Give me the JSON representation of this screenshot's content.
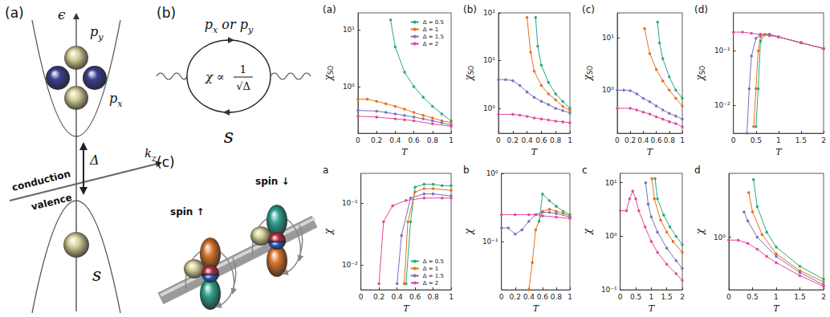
{
  "diagram": {
    "a": {
      "label": "(a)",
      "energy_axis": "ϵ",
      "orbital_upper": {
        "text": "p",
        "sub": "y"
      },
      "orbital_middle": {
        "text": "p",
        "sub": "x"
      },
      "gap": "Δ",
      "band_upper": "conduction",
      "band_lower": "valence",
      "momentum_axis": {
        "text": "k",
        "sub": "z"
      },
      "orbital_lower": "s"
    },
    "b": {
      "label": "(b)",
      "top_left": {
        "text": "p",
        "sub": "x"
      },
      "top_middle": "or",
      "top_right": {
        "text": "p",
        "sub": "y"
      },
      "formula": {
        "lhs": "χ ∝",
        "numerator": "1",
        "denominator": "√Δ"
      },
      "bottom": "s"
    },
    "c": {
      "label": "(c)",
      "spin_left": "spin ↑",
      "spin_right": "spin ↓"
    }
  },
  "chart_data": [
    {
      "type": "line",
      "title": "(a)",
      "xlabel": "T",
      "ylabel": "χ",
      "ylabel_sub": "SO",
      "log": "y",
      "grid": false,
      "marker": "circle",
      "legend": "upper right",
      "xlim": [
        0,
        1
      ],
      "xticks": [
        0,
        0.2,
        0.4,
        0.6,
        0.8,
        1
      ],
      "ylim": [
        0.15,
        20
      ],
      "yticks": [
        {
          "value": 1,
          "label": "10⁰"
        },
        {
          "value": 10,
          "label": "10¹"
        }
      ],
      "series": [
        {
          "name": "Δ = 0.5",
          "color": "#2ca87f",
          "x": [
            0.35,
            0.4,
            0.5,
            0.6,
            0.7,
            0.8,
            0.9,
            1
          ],
          "values": [
            15,
            5,
            1.8,
            1.0,
            0.65,
            0.45,
            0.33,
            0.25
          ]
        },
        {
          "name": "Δ = 1",
          "color": "#e8701a",
          "x": [
            0,
            0.1,
            0.2,
            0.3,
            0.4,
            0.5,
            0.6,
            0.7,
            0.8,
            0.9,
            1
          ],
          "values": [
            0.6,
            0.6,
            0.55,
            0.5,
            0.45,
            0.4,
            0.35,
            0.31,
            0.28,
            0.25,
            0.23
          ]
        },
        {
          "name": "Δ = 1.5",
          "color": "#7a6fbf",
          "x": [
            0,
            0.2,
            0.3,
            0.4,
            0.5,
            0.6,
            0.7,
            0.8,
            0.9,
            1
          ],
          "values": [
            0.38,
            0.37,
            0.35,
            0.33,
            0.31,
            0.29,
            0.27,
            0.25,
            0.23,
            0.21
          ]
        },
        {
          "name": "Δ = 2",
          "color": "#e5489b",
          "x": [
            0,
            0.2,
            0.4,
            0.5,
            0.6,
            0.8,
            1
          ],
          "values": [
            0.3,
            0.29,
            0.27,
            0.26,
            0.25,
            0.22,
            0.2
          ]
        }
      ]
    },
    {
      "type": "line",
      "title": "(b)",
      "xlabel": "T",
      "ylabel": "χ",
      "ylabel_sub": "SO",
      "log": "y",
      "grid": false,
      "marker": "circle",
      "xlim": [
        0,
        1
      ],
      "xticks": [
        0,
        0.2,
        0.4,
        0.6,
        0.8,
        1
      ],
      "ylim": [
        0.3,
        100
      ],
      "yticks": [
        {
          "value": 1,
          "label": "10⁰"
        },
        {
          "value": 10,
          "label": "10¹"
        },
        {
          "value": 100,
          "label": "10²"
        }
      ],
      "series": [
        {
          "name": "Δ = 0.5",
          "color": "#2ca87f",
          "x": [
            0.52,
            0.55,
            0.6,
            0.7,
            0.8,
            0.9,
            1
          ],
          "values": [
            80,
            20,
            8,
            3.5,
            2,
            1.4,
            1
          ]
        },
        {
          "name": "Δ = 1",
          "color": "#e8701a",
          "x": [
            0.4,
            0.45,
            0.5,
            0.6,
            0.7,
            0.8,
            0.9,
            1
          ],
          "values": [
            80,
            15,
            6,
            3,
            2,
            1.5,
            1.1,
            0.9
          ]
        },
        {
          "name": "Δ = 1.5",
          "color": "#7a6fbf",
          "x": [
            0,
            0.1,
            0.2,
            0.3,
            0.4,
            0.5,
            0.6,
            0.7,
            0.8,
            0.9,
            1
          ],
          "values": [
            4,
            4,
            3.8,
            3,
            2.2,
            1.7,
            1.4,
            1.2,
            1.0,
            0.9,
            0.8
          ]
        },
        {
          "name": "Δ = 2",
          "color": "#e5489b",
          "x": [
            0,
            0.2,
            0.3,
            0.4,
            0.5,
            0.6,
            0.7,
            0.8,
            0.9,
            1
          ],
          "values": [
            0.75,
            0.75,
            0.72,
            0.68,
            0.63,
            0.6,
            0.57,
            0.54,
            0.52,
            0.5
          ]
        }
      ]
    },
    {
      "type": "line",
      "title": "(c)",
      "xlabel": "T",
      "ylabel": "χ",
      "ylabel_sub": "SO",
      "log": "y",
      "grid": false,
      "marker": "circle",
      "xlim": [
        0,
        1
      ],
      "xticks": [
        0,
        0.2,
        0.4,
        0.6,
        0.8,
        1
      ],
      "ylim": [
        0.15,
        30
      ],
      "yticks": [
        {
          "value": 1,
          "label": "10⁰"
        },
        {
          "value": 10,
          "label": "10¹"
        }
      ],
      "series": [
        {
          "name": "Δ = 0.5",
          "color": "#2ca87f",
          "x": [
            0.62,
            0.65,
            0.7,
            0.8,
            0.9,
            1
          ],
          "values": [
            20,
            8,
            4,
            1.8,
            1.0,
            0.7
          ]
        },
        {
          "name": "Δ = 1",
          "color": "#e8701a",
          "x": [
            0.42,
            0.5,
            0.6,
            0.7,
            0.8,
            0.9,
            1
          ],
          "values": [
            15,
            5,
            2.5,
            1.5,
            1.0,
            0.7,
            0.5
          ]
        },
        {
          "name": "Δ = 1.5",
          "color": "#7a6fbf",
          "x": [
            0,
            0.1,
            0.2,
            0.3,
            0.4,
            0.5,
            0.6,
            0.7,
            0.8,
            0.9,
            1
          ],
          "values": [
            1.0,
            1.0,
            0.98,
            0.85,
            0.7,
            0.6,
            0.5,
            0.42,
            0.36,
            0.32,
            0.28
          ]
        },
        {
          "name": "Δ = 2",
          "color": "#e5489b",
          "x": [
            0,
            0.2,
            0.3,
            0.4,
            0.5,
            0.6,
            0.7,
            0.8,
            0.9,
            1
          ],
          "values": [
            0.45,
            0.45,
            0.42,
            0.38,
            0.35,
            0.31,
            0.28,
            0.25,
            0.23,
            0.2
          ]
        }
      ]
    },
    {
      "type": "line",
      "title": "(d)",
      "xlabel": "T",
      "ylabel": "χ",
      "ylabel_sub": "SO",
      "log": "y",
      "grid": false,
      "marker": "circle",
      "xlim": [
        0,
        2
      ],
      "xticks": [
        0,
        0.5,
        1,
        1.5,
        2
      ],
      "ylim": [
        0.003,
        0.5
      ],
      "yticks": [
        {
          "value": 0.01,
          "label": "10⁻²"
        },
        {
          "value": 0.1,
          "label": "10⁻¹"
        }
      ],
      "series": [
        {
          "name": "Δ = 0.5",
          "color": "#2ca87f",
          "x": [
            0.5,
            0.55,
            0.6,
            0.7,
            0.8,
            1,
            1.5,
            2
          ],
          "values": [
            0.004,
            0.02,
            0.15,
            0.2,
            0.2,
            0.18,
            0.14,
            0.11
          ]
        },
        {
          "name": "Δ = 1",
          "color": "#e8701a",
          "x": [
            0.45,
            0.5,
            0.55,
            0.6,
            0.7,
            0.8,
            1,
            1.5,
            2
          ],
          "values": [
            0.004,
            0.02,
            0.1,
            0.18,
            0.2,
            0.2,
            0.18,
            0.14,
            0.11
          ]
        },
        {
          "name": "Δ = 1.5",
          "color": "#7a6fbf",
          "x": [
            0.3,
            0.35,
            0.4,
            0.5,
            0.6,
            0.8,
            1,
            1.5,
            2
          ],
          "values": [
            0.003,
            0.02,
            0.08,
            0.17,
            0.2,
            0.2,
            0.18,
            0.14,
            0.11
          ]
        },
        {
          "name": "Δ = 2",
          "color": "#e5489b",
          "x": [
            0,
            0.2,
            0.4,
            0.6,
            0.8,
            1,
            1.5,
            2
          ],
          "values": [
            0.22,
            0.22,
            0.21,
            0.2,
            0.19,
            0.18,
            0.14,
            0.11
          ]
        }
      ]
    },
    {
      "type": "line",
      "title": "a",
      "xlabel": "T",
      "ylabel": "χ",
      "log": "y",
      "grid": false,
      "marker": "circle",
      "legend": "lower right",
      "xlim": [
        0,
        1
      ],
      "xticks": [
        0,
        0.2,
        0.4,
        0.6,
        0.8,
        1
      ],
      "ylim": [
        0.004,
        0.3
      ],
      "yticks": [
        {
          "value": 0.01,
          "label": "10⁻²"
        },
        {
          "value": 0.1,
          "label": "10⁻¹"
        }
      ],
      "series": [
        {
          "name": "Δ = 0.5",
          "color": "#2ca87f",
          "x": [
            0.5,
            0.55,
            0.6,
            0.7,
            0.8,
            0.9,
            1
          ],
          "values": [
            0.005,
            0.05,
            0.18,
            0.2,
            0.2,
            0.19,
            0.19
          ]
        },
        {
          "name": "Δ = 1",
          "color": "#e8701a",
          "x": [
            0.48,
            0.52,
            0.6,
            0.7,
            0.8,
            1
          ],
          "values": [
            0.005,
            0.05,
            0.15,
            0.17,
            0.17,
            0.16
          ]
        },
        {
          "name": "Δ = 1.5",
          "color": "#7a6fbf",
          "x": [
            0.4,
            0.45,
            0.55,
            0.7,
            0.8,
            1
          ],
          "values": [
            0.005,
            0.03,
            0.12,
            0.14,
            0.14,
            0.13
          ]
        },
        {
          "name": "Δ = 2",
          "color": "#e5489b",
          "x": [
            0.2,
            0.25,
            0.35,
            0.5,
            0.7,
            0.9,
            1
          ],
          "values": [
            0.005,
            0.05,
            0.09,
            0.11,
            0.12,
            0.12,
            0.12
          ]
        }
      ]
    },
    {
      "type": "line",
      "title": "b",
      "xlabel": "T",
      "ylabel": "χ",
      "log": "y",
      "grid": false,
      "marker": "circle",
      "xlim": [
        0,
        1
      ],
      "xticks": [
        0,
        0.2,
        0.4,
        0.6,
        0.8,
        1
      ],
      "ylim": [
        0.02,
        1
      ],
      "yticks": [
        {
          "value": 0.1,
          "label": "10⁻¹"
        },
        {
          "value": 1,
          "label": "10⁰"
        }
      ],
      "series": [
        {
          "name": "Δ = 0.5",
          "color": "#2ca87f",
          "x": [
            0.55,
            0.6,
            0.7,
            0.8,
            0.9,
            1
          ],
          "values": [
            0.2,
            0.5,
            0.4,
            0.33,
            0.28,
            0.25
          ]
        },
        {
          "name": "Δ = 1",
          "color": "#e8701a",
          "x": [
            0.4,
            0.45,
            0.5,
            0.6,
            0.7,
            0.8,
            0.9,
            1
          ],
          "values": [
            0.02,
            0.05,
            0.15,
            0.28,
            0.3,
            0.28,
            0.26,
            0.24
          ]
        },
        {
          "name": "Δ = 1.5",
          "color": "#7a6fbf",
          "x": [
            0,
            0.1,
            0.2,
            0.3,
            0.4,
            0.5,
            0.6,
            0.7,
            0.8,
            1
          ],
          "values": [
            0.16,
            0.16,
            0.13,
            0.15,
            0.2,
            0.25,
            0.27,
            0.27,
            0.26,
            0.23
          ]
        },
        {
          "name": "Δ = 2",
          "color": "#e5489b",
          "x": [
            0,
            0.2,
            0.4,
            0.5,
            0.6,
            0.8,
            1
          ],
          "values": [
            0.25,
            0.25,
            0.25,
            0.25,
            0.24,
            0.23,
            0.22
          ]
        }
      ]
    },
    {
      "type": "line",
      "title": "c",
      "xlabel": "T",
      "ylabel": "χ",
      "log": "y",
      "grid": false,
      "marker": "circle",
      "xlim": [
        0,
        2
      ],
      "xticks": [
        0,
        0.5,
        1,
        1.5,
        2
      ],
      "ylim": [
        0.1,
        15
      ],
      "yticks": [
        {
          "value": 0.1,
          "label": "10⁻¹"
        },
        {
          "value": 1,
          "label": "10⁰"
        },
        {
          "value": 10,
          "label": "10¹"
        }
      ],
      "series": [
        {
          "name": "Δ = 0.5",
          "color": "#2ca87f",
          "x": [
            1.12,
            1.2,
            1.4,
            1.6,
            1.8,
            2
          ],
          "values": [
            12,
            5,
            2.5,
            1.5,
            1,
            0.7
          ]
        },
        {
          "name": "Δ = 1",
          "color": "#e8701a",
          "x": [
            1.02,
            1.1,
            1.3,
            1.5,
            1.7,
            2
          ],
          "values": [
            12,
            5,
            2,
            1.2,
            0.8,
            0.5
          ]
        },
        {
          "name": "Δ = 1.5",
          "color": "#7a6fbf",
          "x": [
            0.82,
            0.9,
            1,
            1.2,
            1.5,
            1.8,
            2
          ],
          "values": [
            10,
            4,
            2.3,
            1.2,
            0.6,
            0.35,
            0.25
          ]
        },
        {
          "name": "Δ = 2",
          "color": "#e5489b",
          "x": [
            0,
            0.2,
            0.3,
            0.4,
            0.5,
            0.6,
            0.8,
            1,
            1.2,
            1.5,
            1.8,
            2
          ],
          "values": [
            3,
            3,
            5,
            7,
            5,
            3,
            1.5,
            0.8,
            0.5,
            0.3,
            0.2,
            0.15
          ]
        }
      ]
    },
    {
      "type": "line",
      "title": "d",
      "xlabel": "T",
      "ylabel": "χ",
      "log": "y",
      "grid": false,
      "marker": "circle",
      "xlim": [
        0,
        2
      ],
      "xticks": [
        0,
        0.5,
        1,
        1.5,
        2
      ],
      "ylim": [
        0.15,
        10
      ],
      "yticks": [
        {
          "value": 1,
          "label": "10⁰"
        }
      ],
      "series": [
        {
          "name": "Δ = 0.5",
          "color": "#2ca87f",
          "x": [
            0.52,
            0.6,
            0.8,
            1,
            1.5,
            2
          ],
          "values": [
            8,
            3,
            1.2,
            0.7,
            0.35,
            0.22
          ]
        },
        {
          "name": "Δ = 1",
          "color": "#e8701a",
          "x": [
            0.42,
            0.5,
            0.7,
            1,
            1.5,
            2
          ],
          "values": [
            5,
            2.5,
            1.1,
            0.55,
            0.3,
            0.2
          ]
        },
        {
          "name": "Δ = 1.5",
          "color": "#7a6fbf",
          "x": [
            0.32,
            0.4,
            0.6,
            1,
            1.5,
            2
          ],
          "values": [
            2.5,
            1.8,
            1.0,
            0.5,
            0.28,
            0.18
          ]
        },
        {
          "name": "Δ = 2",
          "color": "#e5489b",
          "x": [
            0,
            0.2,
            0.4,
            0.6,
            0.8,
            1,
            1.5,
            2
          ],
          "values": [
            0.9,
            0.9,
            0.8,
            0.65,
            0.5,
            0.4,
            0.25,
            0.17
          ]
        }
      ]
    }
  ]
}
